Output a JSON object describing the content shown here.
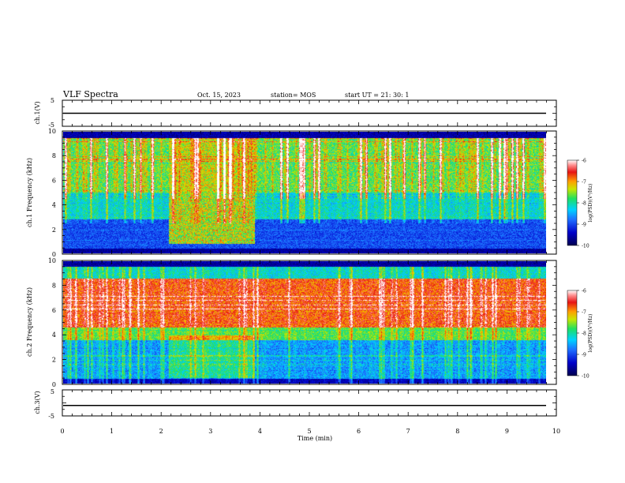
{
  "header": {
    "title": "VLF Spectra",
    "date": "Oct. 15, 2023",
    "station": "station= MOS",
    "start": "start UT = 21: 30: 1"
  },
  "chart_data": [
    {
      "type": "line",
      "panel": "ch1-voltage",
      "ylabel": "ch.1(V)",
      "ylim": [
        -5,
        5
      ],
      "yticks": [
        "5",
        "-5"
      ],
      "x": [
        0,
        10
      ],
      "values": [
        0,
        0
      ]
    },
    {
      "type": "heatmap",
      "panel": "ch1-spectrogram",
      "ylabel": "ch.1 Frequency (kHz)",
      "ylim": [
        0,
        10
      ],
      "yticks": [
        "0",
        "2",
        "4",
        "6",
        "8",
        "10"
      ],
      "xlim": [
        0,
        9.85
      ],
      "colorbar": {
        "label": "log(PSD)(V²/Hz)",
        "range": [
          -10,
          -6
        ],
        "ticks": [
          "-6",
          "-7",
          "-8",
          "-9",
          "-10"
        ]
      },
      "description_levels": {
        "emission_band_khz": [
          5,
          9
        ],
        "strong_interval_min": [
          2.15,
          3.9
        ],
        "low_freq_quiet_khz": [
          0.5,
          3
        ]
      }
    },
    {
      "type": "heatmap",
      "panel": "ch2-spectrogram",
      "ylabel": "ch.2 Frequency (kHz)",
      "ylim": [
        0,
        10
      ],
      "yticks": [
        "0",
        "2",
        "4",
        "6",
        "8",
        "10"
      ],
      "xlim": [
        0,
        9.85
      ],
      "colorbar": {
        "label": "log(PSD)(V²/Hz)",
        "range": [
          -10,
          -6
        ],
        "ticks": [
          "-6",
          "-7",
          "-8",
          "-9",
          "-10"
        ]
      },
      "description_levels": {
        "emission_band_khz": [
          4.5,
          8.5
        ],
        "strong_interval_min": [
          2.15,
          3.9
        ]
      }
    },
    {
      "type": "line",
      "panel": "ch3-voltage",
      "ylabel": "ch.3(V)",
      "ylim": [
        -5,
        5
      ],
      "yticks": [
        "5",
        "-5"
      ],
      "x": [
        0,
        10
      ],
      "values": [
        -1,
        -1
      ]
    }
  ],
  "xaxis": {
    "label": "Time (min)",
    "ticks": [
      "0",
      "1",
      "2",
      "3",
      "4",
      "5",
      "6",
      "7",
      "8",
      "9",
      "10"
    ],
    "range": [
      0,
      10
    ]
  },
  "colors": {
    "stops": [
      "#000050",
      "#0000c8",
      "#1e6cff",
      "#00d2ff",
      "#20e060",
      "#c8e600",
      "#ffa000",
      "#e61414",
      "#ff8c8c",
      "#ffffff"
    ]
  }
}
